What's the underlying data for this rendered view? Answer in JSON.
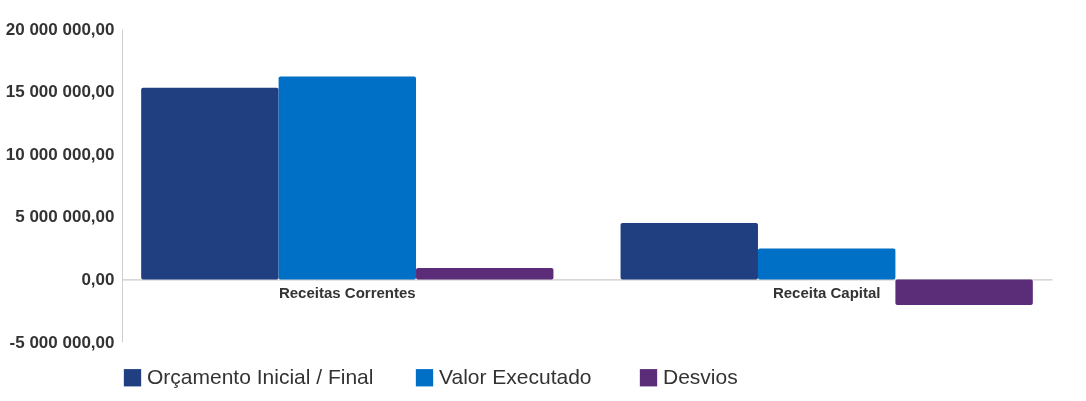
{
  "chart_data": {
    "type": "bar",
    "categories": [
      "Receitas Correntes",
      "Receita Capital"
    ],
    "series": [
      {
        "name": "Orçamento Inicial / Final",
        "color": "#1f3f80",
        "values": [
          15300000,
          4500000
        ]
      },
      {
        "name": "Valor  Executado",
        "color": "#0070c6",
        "values": [
          16200000,
          2470000
        ]
      },
      {
        "name": "Desvios",
        "color": "#5b2d78",
        "values": [
          920000,
          -2050000
        ]
      }
    ],
    "ylim": [
      -5000000,
      20000000
    ],
    "yticks": [
      {
        "value": -5000000,
        "label": "-5 000 000,00"
      },
      {
        "value": 0,
        "label": "0,00"
      },
      {
        "value": 5000000,
        "label": "5 000 000,00"
      },
      {
        "value": 10000000,
        "label": "10 000 000,00"
      },
      {
        "value": 15000000,
        "label": "15 000 000,00"
      },
      {
        "value": 20000000,
        "label": "20 000 000,00"
      }
    ],
    "grid": false,
    "legend": "bottom"
  }
}
